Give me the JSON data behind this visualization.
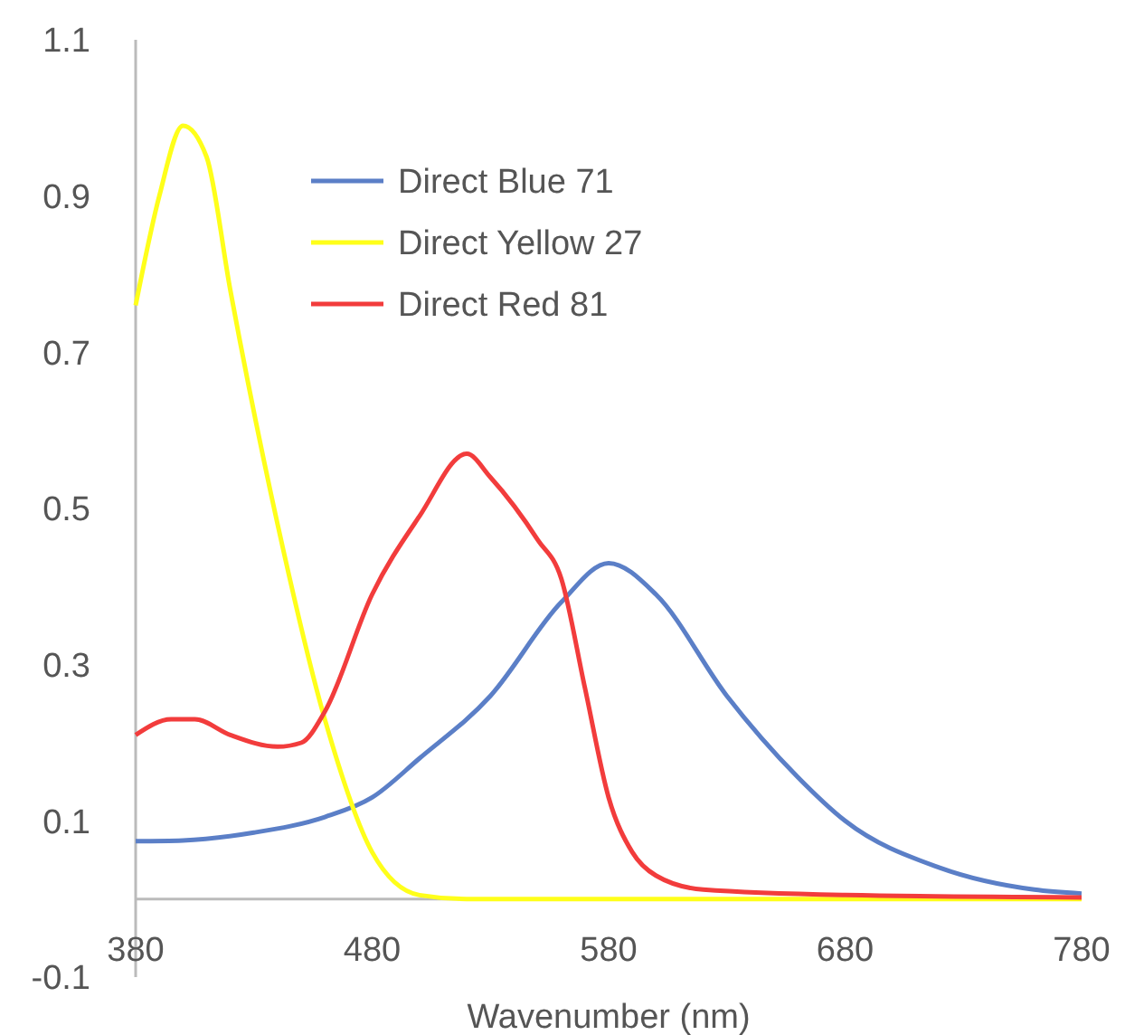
{
  "chart_data": {
    "type": "line",
    "xlabel": "Wavenumber (nm)",
    "xlim": [
      380,
      780
    ],
    "xticks": [
      380,
      480,
      580,
      680,
      780
    ],
    "ylim": [
      -0.1,
      1.1
    ],
    "yticks": [
      -0.1,
      0.1,
      0.3,
      0.5,
      0.7,
      0.9,
      1.1
    ],
    "grid": false,
    "legend": "top",
    "marker": "none",
    "line_style": "solid",
    "series": [
      {
        "name": "Direct Blue 71",
        "color": "#5b7fc7",
        "x": [
          380,
          400,
          430,
          460,
          480,
          500,
          530,
          560,
          580,
          600,
          630,
          660,
          680,
          720,
          760,
          780
        ],
        "values": [
          0.074,
          0.075,
          0.085,
          0.105,
          0.13,
          0.18,
          0.26,
          0.38,
          0.43,
          0.39,
          0.26,
          0.156,
          0.1,
          0.04,
          0.012,
          0.007
        ]
      },
      {
        "name": "Direct Yellow 27",
        "color": "#ffff1a",
        "x": [
          380,
          390,
          400,
          410,
          420,
          440,
          460,
          480,
          500,
          520,
          600,
          700,
          780
        ],
        "values": [
          0.76,
          0.9,
          0.99,
          0.95,
          0.78,
          0.48,
          0.23,
          0.06,
          0.005,
          0.0,
          0.0,
          0.0,
          0.0
        ]
      },
      {
        "name": "Direct Red 81",
        "color": "#f23c3c",
        "x": [
          380,
          395,
          405,
          420,
          440,
          450,
          460,
          480,
          500,
          520,
          530,
          550,
          560,
          570,
          580,
          590,
          600,
          620,
          680,
          780
        ],
        "values": [
          0.21,
          0.23,
          0.23,
          0.21,
          0.195,
          0.2,
          0.24,
          0.39,
          0.49,
          0.57,
          0.54,
          0.46,
          0.41,
          0.27,
          0.13,
          0.06,
          0.03,
          0.012,
          0.005,
          0.002
        ]
      }
    ]
  }
}
